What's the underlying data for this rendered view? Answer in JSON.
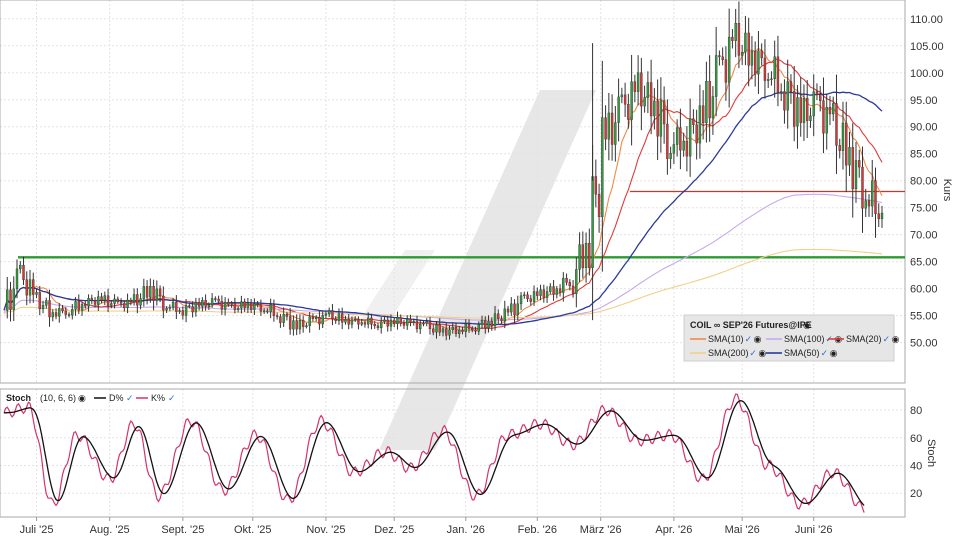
{
  "chart_data": [
    {
      "type": "candlestick",
      "title": "COIL ∞ SEP'26 Futures@IPE",
      "ylabel": "Kurs",
      "ylim": [
        44,
        112
      ],
      "y_ticks": [
        50,
        55,
        60,
        65,
        70,
        75,
        80,
        85,
        90,
        95,
        100,
        105,
        110
      ],
      "y_tick_labels": [
        "50.00",
        "55.00",
        "60.00",
        "65.00",
        "70.00",
        "75.00",
        "80.00",
        "85.00",
        "90.00",
        "95.00",
        "100.00",
        "105.00",
        "110.00"
      ],
      "x_ticks": [
        {
          "label": "Juli '25",
          "week": 2.0
        },
        {
          "label": "Aug. '25",
          "week": 6.5
        },
        {
          "label": "Sept. '25",
          "week": 11.0
        },
        {
          "label": "Okt. '25",
          "week": 15.3
        },
        {
          "label": "Nov. '25",
          "week": 19.8
        },
        {
          "label": "Dez. '25",
          "week": 24.0
        },
        {
          "label": "Jan. '26",
          "week": 28.4
        },
        {
          "label": "Feb. '26",
          "week": 32.8
        },
        {
          "label": "März '26",
          "week": 36.7
        },
        {
          "label": "Apr. '26",
          "week": 41.2
        },
        {
          "label": "Mai '26",
          "week": 45.4
        },
        {
          "label": "Juni '26",
          "week": 49.8
        }
      ],
      "price_close": [
        56.0,
        62.5,
        58.0,
        55.5,
        56.0,
        57.5,
        58.0,
        57.0,
        57.5,
        60.0,
        57.0,
        56.0,
        57.0,
        57.5,
        56.5,
        57.0,
        56.5,
        55.0,
        53.0,
        54.0,
        55.0,
        54.0,
        54.0,
        53.5,
        54.0,
        53.5,
        53.0,
        52.0,
        52.5,
        53.0,
        54.0,
        55.5,
        58.0,
        59.0,
        60.0,
        62.0,
        70.0,
        88.0,
        93.0,
        97.0,
        94.0,
        87.0,
        88.0,
        92.0,
        100.0,
        106.0,
        103.0,
        101.0,
        97.0,
        92.0,
        94.0,
        90.0,
        84.0,
        78.0,
        74.0
      ],
      "horizontal_lines": [
        {
          "value": 65.8,
          "color": "#2c9a33"
        },
        {
          "value": 78.0,
          "color": "#c0392b"
        }
      ],
      "series": [
        {
          "name": "SMA(10)",
          "color": "#f08a4b"
        },
        {
          "name": "SMA(100)",
          "color": "#c6a9f0"
        },
        {
          "name": "SMA(20)",
          "color": "#e03a3a"
        },
        {
          "name": "SMA(200)",
          "color": "#f2d08a"
        },
        {
          "name": "SMA(50)",
          "color": "#2b3a9e"
        }
      ],
      "legend_position": "lower-right"
    },
    {
      "type": "line",
      "title": "Stoch",
      "params": "(10, 6, 6)",
      "ylabel": "Stoch",
      "ylim": [
        5,
        93
      ],
      "y_ticks": [
        20,
        40,
        60,
        80
      ],
      "y_tick_labels": [
        "20",
        "40",
        "60",
        "80"
      ],
      "series": [
        {
          "name": "D%",
          "color": "#111111"
        },
        {
          "name": "K%",
          "color": "#d6336c"
        }
      ],
      "pivots": {
        "week": [
          0,
          1.5,
          3,
          4.5,
          6.5,
          8,
          9.5,
          11.5,
          13.5,
          15.5,
          17.5,
          19.5,
          21.5,
          23.5,
          25,
          27,
          29,
          31,
          33,
          35,
          37,
          39,
          41,
          43,
          45,
          47,
          49,
          51,
          53
        ],
        "value": [
          78,
          82,
          12,
          62,
          30,
          70,
          18,
          72,
          22,
          62,
          15,
          72,
          35,
          50,
          38,
          65,
          18,
          62,
          70,
          55,
          80,
          58,
          62,
          30,
          88,
          40,
          12,
          35,
          8
        ]
      }
    }
  ],
  "legend": {
    "title": "COIL ∞ SEP'26 Futures@IPE",
    "check": "✓"
  },
  "stoch_legend": {
    "title": "Stoch",
    "params": "(10, 6, 6)",
    "d_label": "D%",
    "k_label": "K%",
    "check": "✓"
  }
}
